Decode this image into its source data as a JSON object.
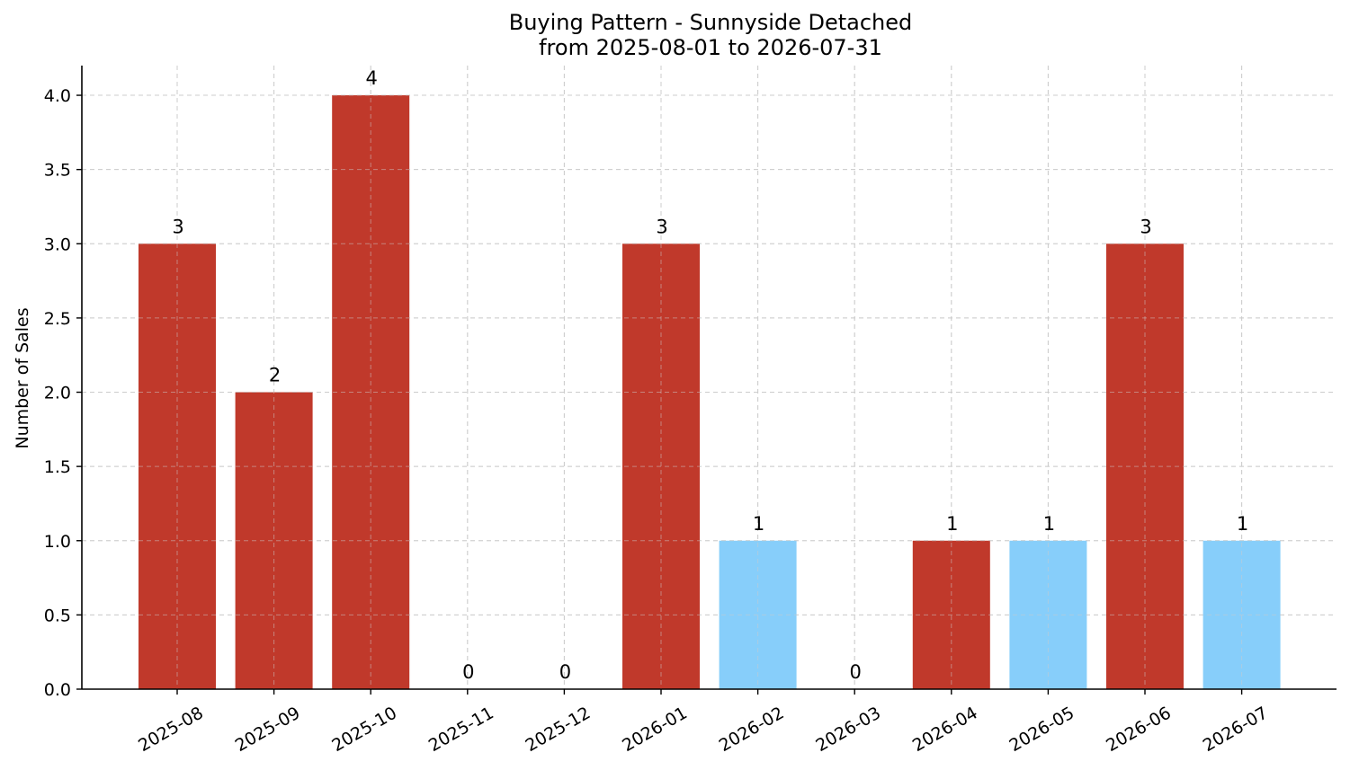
{
  "chart_data": {
    "type": "bar",
    "title": "Buying Pattern - Sunnyside Detached",
    "subtitle": "from 2025-08-01 to 2026-07-31",
    "xlabel": "",
    "ylabel": "Number of Sales",
    "ylim": [
      0,
      4.2
    ],
    "yticks": [
      "0.0",
      "0.5",
      "1.0",
      "1.5",
      "2.0",
      "2.5",
      "3.0",
      "3.5",
      "4.0"
    ],
    "grid": true,
    "categories": [
      "2025-08",
      "2025-09",
      "2025-10",
      "2025-11",
      "2025-12",
      "2026-01",
      "2026-02",
      "2026-03",
      "2026-04",
      "2026-05",
      "2026-06",
      "2026-07"
    ],
    "values": [
      3,
      2,
      4,
      0,
      0,
      3,
      1,
      0,
      1,
      1,
      3,
      1
    ],
    "bar_colors": [
      "#c0392b",
      "#c0392b",
      "#c0392b",
      "#c0392b",
      "#c0392b",
      "#c0392b",
      "#87cefa",
      "#c0392b",
      "#c0392b",
      "#87cefa",
      "#c0392b",
      "#87cefa"
    ]
  }
}
